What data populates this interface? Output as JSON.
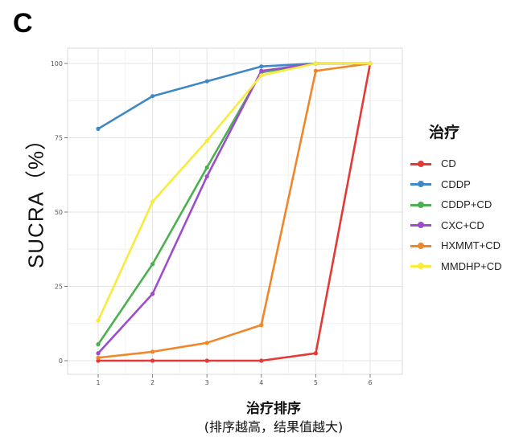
{
  "panel_letter": "C",
  "chart_data": {
    "type": "line",
    "title": "",
    "xlabel": "治疗排序",
    "xlabel_sub": "(排序越高，结果值越大)",
    "ylabel": "SUCRA（%）",
    "x": [
      1,
      2,
      3,
      4,
      5,
      6
    ],
    "x_ticks": [
      "1",
      "2",
      "3",
      "4",
      "5",
      "6"
    ],
    "y_ticks": [
      "0",
      "25",
      "50",
      "75",
      "100"
    ],
    "ylim": [
      0,
      100
    ],
    "xlim": [
      0.5,
      6.6
    ],
    "grid": true,
    "legend_title": "治疗",
    "legend_position": "right",
    "series": [
      {
        "name": "CD",
        "color": "#e53935",
        "values": [
          0,
          0,
          0,
          0,
          2.5,
          100
        ]
      },
      {
        "name": "CDDP",
        "color": "#3f88c5",
        "values": [
          78,
          89,
          94,
          99,
          100,
          100
        ]
      },
      {
        "name": "CDDP+CD",
        "color": "#4caf50",
        "values": [
          5.5,
          32.5,
          65,
          97,
          100,
          100
        ]
      },
      {
        "name": "CXC+CD",
        "color": "#9c4dcc",
        "values": [
          2.5,
          22.5,
          62,
          97.5,
          100,
          100
        ]
      },
      {
        "name": "HXMMT+CD",
        "color": "#f0862a",
        "values": [
          1,
          3,
          6,
          12,
          97.5,
          100
        ]
      },
      {
        "name": "MMDHP+CD",
        "color": "#f7ec3c",
        "values": [
          13.5,
          53.5,
          74,
          96,
          100,
          100
        ]
      }
    ]
  }
}
